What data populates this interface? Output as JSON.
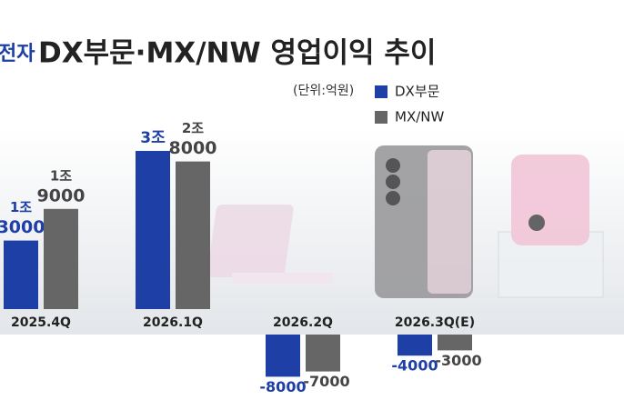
{
  "chart_data": {
    "type": "bar",
    "title_prefix": "전자",
    "title": "DX부문·MX/NW 영업이익 추이",
    "unit": "(단위:억원)",
    "categories": [
      "2025.4Q",
      "2026.1Q",
      "2026.2Q",
      "2026.3Q(E)"
    ],
    "series": [
      {
        "name": "DX부문",
        "color": "#1d3fa6",
        "values": [
          13000,
          30000,
          -8000,
          -4000
        ],
        "value_labels": [
          [
            "1조",
            "3000"
          ],
          [
            "3조"
          ],
          [
            "-8000"
          ],
          [
            "-4000"
          ]
        ]
      },
      {
        "name": "MX/NW",
        "color": "#666666",
        "values": [
          19000,
          28000,
          -7000,
          -3000
        ],
        "value_labels": [
          [
            "1조",
            "9000"
          ],
          [
            "2조",
            "8000"
          ],
          [
            "-7000"
          ],
          [
            "-3000"
          ]
        ]
      }
    ]
  }
}
